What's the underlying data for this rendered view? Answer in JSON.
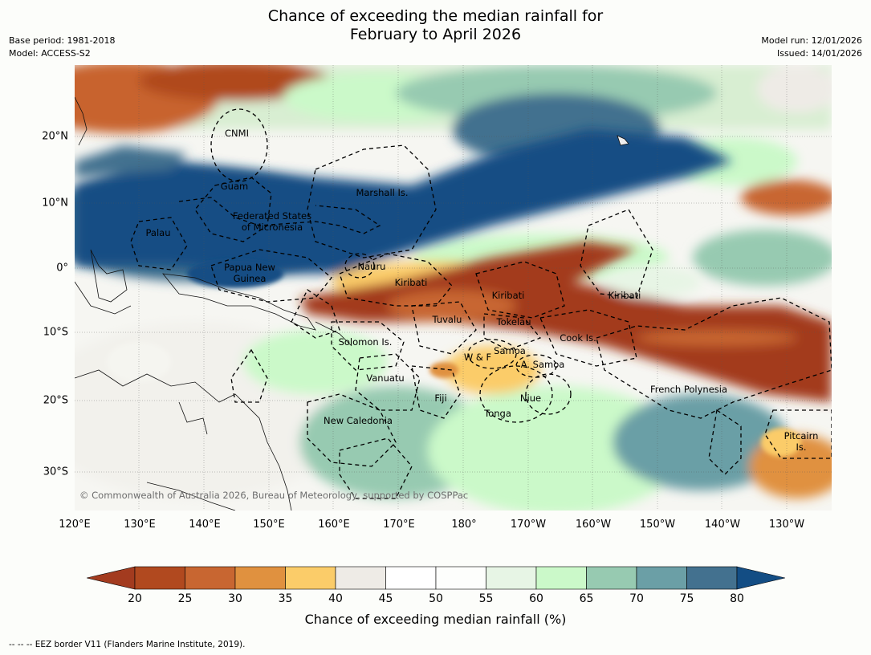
{
  "title_line1": "Chance of exceeding the median rainfall for",
  "title_line2": "February to April 2026",
  "base_period": "Base period: 1981-2018",
  "model": "Model: ACCESS-S2",
  "model_run": "Model run: 12/01/2026",
  "issued": "Issued: 14/01/2026",
  "lon_ticks": [
    "120°E",
    "130°E",
    "140°E",
    "150°E",
    "160°E",
    "170°E",
    "180°",
    "170°W",
    "160°W",
    "150°W",
    "140°W",
    "130°W"
  ],
  "lat_ticks": [
    "20°N",
    "10°N",
    "0°",
    "10°S",
    "20°S",
    "30°S"
  ],
  "regions": {
    "cnmi": "CNMI",
    "guam": "Guam",
    "marshall": "Marshall Is.",
    "fsm_1": "Federated States",
    "fsm_2": "of Micronesia",
    "palau": "Palau",
    "png_1": "Papua New",
    "png_2": "Guinea",
    "nauru": "Nauru",
    "kiribati_w": "Kiribati",
    "kiribati_c": "Kiribati",
    "kiribati_e": "Kiribati",
    "tuvalu": "Tuvalu",
    "tokelau": "Tokelau",
    "cook": "Cook Is.",
    "solomon": "Solomon Is.",
    "samoa": "Samoa",
    "wf": "W & F",
    "asamoa": "A. Samoa",
    "vanuatu": "Vanuatu",
    "fiji": "Fiji",
    "niue": "Niue",
    "tonga": "Tonga",
    "new_caledonia": "New Caledonia",
    "french_polynesia": "French Polynesia",
    "pitcairn_1": "Pitcairn",
    "pitcairn_2": "Is."
  },
  "copyright": "© Commonwealth of Australia 2026, Bureau of Meteorology, supported by COSPPac",
  "colorbar": {
    "label": "Chance of exceeding median rainfall (%)",
    "ticks": [
      "20",
      "25",
      "30",
      "35",
      "40",
      "45",
      "50",
      "55",
      "60",
      "65",
      "70",
      "75",
      "80"
    ],
    "colors": [
      "#a33b1f",
      "#b1491f",
      "#c86631",
      "#e0913f",
      "#fbcc69",
      "#eeebe6",
      "#ffffff",
      "#fdfefc",
      "#e7f5e5",
      "#cbf9c9",
      "#97cab1",
      "#6b9fa6",
      "#43718f",
      "#134d84"
    ]
  },
  "legend_note": "--  --  -- EEZ border V11 (Flanders Marine Institute, 2019)."
}
